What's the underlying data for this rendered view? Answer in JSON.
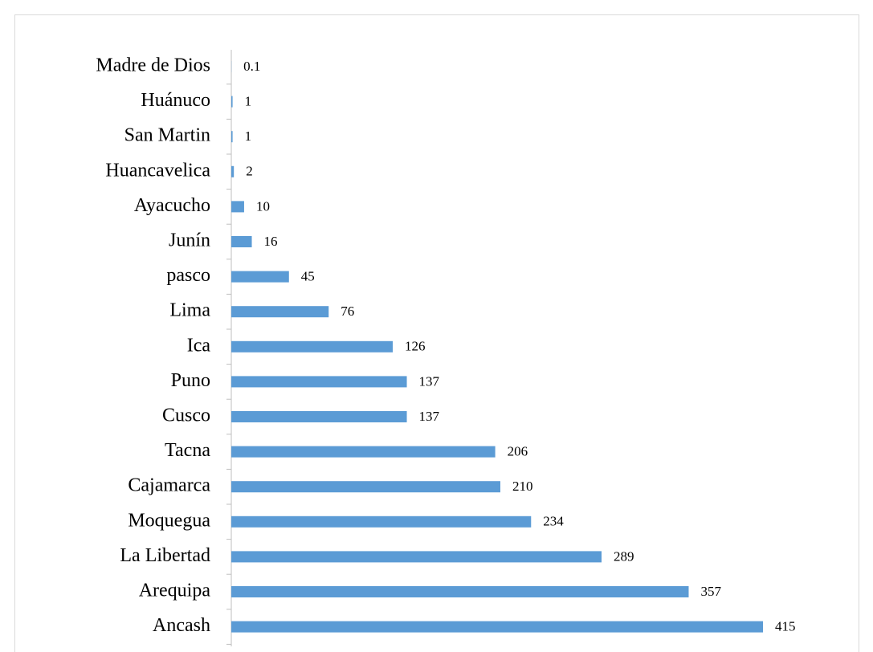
{
  "chart_data": {
    "type": "bar",
    "orientation": "horizontal",
    "categories": [
      "Madre de Dios",
      "Huánuco",
      "San Martin",
      "Huancavelica",
      "Ayacucho",
      "Junín",
      "pasco",
      "Lima",
      "Ica",
      "Puno",
      "Cusco",
      "Tacna",
      "Cajamarca",
      "Moquegua",
      "La Libertad",
      "Arequipa",
      "Ancash"
    ],
    "values": [
      0.1,
      1,
      1,
      2,
      10,
      16,
      45,
      76,
      126,
      137,
      137,
      206,
      210,
      234,
      289,
      357,
      415
    ],
    "color": "#5b9bd5"
  }
}
